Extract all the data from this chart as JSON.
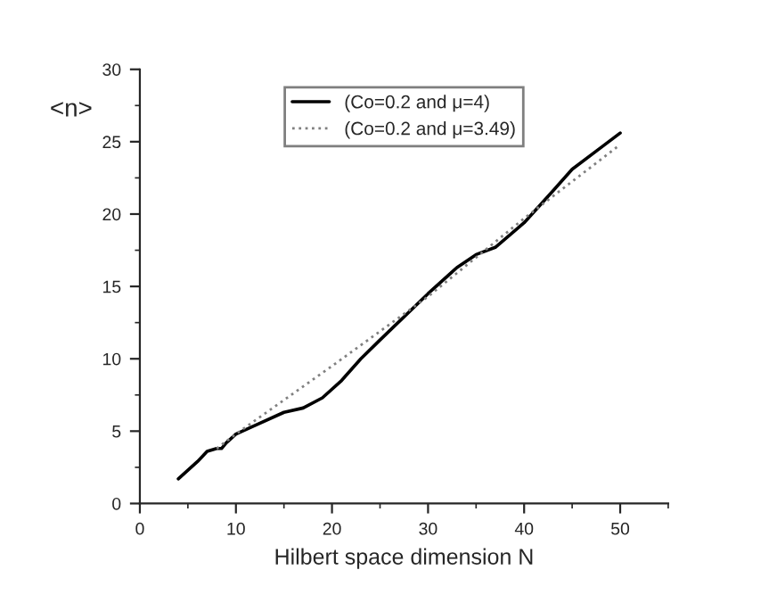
{
  "chart_data": {
    "type": "line",
    "xlabel": "Hilbert space dimension N",
    "ylabel": "<n>",
    "xlim": [
      0,
      55
    ],
    "ylim": [
      0,
      30
    ],
    "xticks": [
      0,
      10,
      20,
      30,
      40,
      50
    ],
    "yticks": [
      0,
      5,
      10,
      15,
      20,
      25,
      30
    ],
    "legend": "top",
    "grid": false,
    "series": [
      {
        "name": "(Co=0.2 and μ=4)",
        "color": "#000000",
        "line_style": "solid",
        "x": [
          4,
          5,
          6,
          7,
          8,
          8.5,
          9,
          10,
          12,
          15,
          17,
          19,
          21,
          23,
          25,
          30,
          33,
          35,
          37,
          40,
          43,
          45,
          48,
          50
        ],
        "values": [
          1.7,
          2.3,
          2.9,
          3.6,
          3.8,
          3.8,
          4.2,
          4.8,
          5.4,
          6.3,
          6.6,
          7.3,
          8.5,
          10,
          11.3,
          14.5,
          16.3,
          17.2,
          17.7,
          19.4,
          21.6,
          23.1,
          24.6,
          25.6
        ]
      },
      {
        "name": "(Co=0.2 and μ=3.49)",
        "color": "#808080",
        "line_style": "dotted",
        "x": [
          8,
          10,
          20,
          30,
          40,
          50
        ],
        "values": [
          3.8,
          4.8,
          9.5,
          14.3,
          19.7,
          24.8
        ]
      }
    ]
  }
}
